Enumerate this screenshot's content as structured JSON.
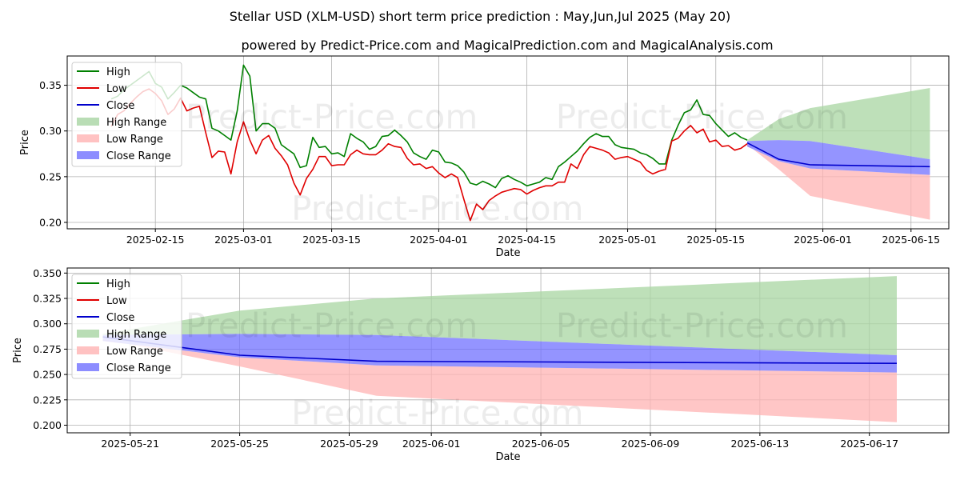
{
  "title": "Stellar USD (XLM-USD) short term price prediction : May,Jun,Jul 2025 (May 20)",
  "subtitle": "powered by Predict-Price.com and MagicalPrediction.com and MagicalAnalysis.com",
  "watermark": "Predict-Price.com",
  "colors": {
    "high": "#008000",
    "low": "#e00000",
    "close": "#0000cc",
    "high_range": "#a8d5a2",
    "low_range": "#ffb3b3",
    "close_range": "#7070ff"
  },
  "legend": [
    "High",
    "Low",
    "Close",
    "High Range",
    "Low Range",
    "Close Range"
  ],
  "chart_data": [
    {
      "type": "line",
      "name": "overview",
      "xlabel": "Date",
      "ylabel": "Price",
      "xlim": [
        "2025-02-01",
        "2025-06-21"
      ],
      "ylim": [
        0.193,
        0.382
      ],
      "x_ticks": [
        "2025-02-15",
        "2025-03-01",
        "2025-03-15",
        "2025-04-01",
        "2025-04-15",
        "2025-05-01",
        "2025-05-15",
        "2025-06-01",
        "2025-06-15"
      ],
      "y_ticks": [
        0.2,
        0.25,
        0.3,
        0.35
      ],
      "y_tick_labels": [
        "0.20",
        "0.25",
        "0.30",
        "0.35"
      ],
      "legend_position": "top-left",
      "grid": true,
      "history_start": "2025-02-08",
      "history": {
        "high": [
          0.335,
          0.338,
          0.345,
          0.35,
          0.355,
          0.36,
          0.365,
          0.352,
          0.348,
          0.335,
          0.342,
          0.35,
          0.347,
          0.342,
          0.337,
          0.335,
          0.303,
          0.3,
          0.295,
          0.29,
          0.322,
          0.372,
          0.36,
          0.3,
          0.308,
          0.308,
          0.303,
          0.285,
          0.28,
          0.275,
          0.26,
          0.262,
          0.293,
          0.282,
          0.283,
          0.275,
          0.276,
          0.272,
          0.297,
          0.292,
          0.288,
          0.28,
          0.283,
          0.294,
          0.295,
          0.301,
          0.295,
          0.288,
          0.276,
          0.272,
          0.269,
          0.279,
          0.277,
          0.266,
          0.265,
          0.262,
          0.255,
          0.243,
          0.241,
          0.245,
          0.242,
          0.238,
          0.248,
          0.251,
          0.247,
          0.244,
          0.24,
          0.242,
          0.244,
          0.249,
          0.247,
          0.261,
          0.266,
          0.272,
          0.278,
          0.286,
          0.293,
          0.297,
          0.294,
          0.294,
          0.285,
          0.282,
          0.281,
          0.28,
          0.276,
          0.274,
          0.27,
          0.264,
          0.264,
          0.29,
          0.306,
          0.32,
          0.323,
          0.334,
          0.318,
          0.317,
          0.308,
          0.301,
          0.294,
          0.298,
          0.293,
          0.29
        ],
        "low": [
          0.305,
          0.318,
          0.322,
          0.33,
          0.337,
          0.343,
          0.346,
          0.341,
          0.333,
          0.318,
          0.324,
          0.336,
          0.322,
          0.325,
          0.327,
          0.298,
          0.271,
          0.278,
          0.277,
          0.253,
          0.288,
          0.31,
          0.29,
          0.275,
          0.29,
          0.295,
          0.281,
          0.273,
          0.263,
          0.243,
          0.23,
          0.248,
          0.258,
          0.272,
          0.272,
          0.262,
          0.263,
          0.263,
          0.274,
          0.279,
          0.275,
          0.274,
          0.274,
          0.279,
          0.286,
          0.283,
          0.282,
          0.27,
          0.263,
          0.264,
          0.259,
          0.261,
          0.254,
          0.249,
          0.253,
          0.249,
          0.225,
          0.202,
          0.22,
          0.214,
          0.224,
          0.229,
          0.233,
          0.235,
          0.237,
          0.236,
          0.231,
          0.235,
          0.238,
          0.24,
          0.24,
          0.244,
          0.244,
          0.264,
          0.259,
          0.274,
          0.283,
          0.281,
          0.279,
          0.276,
          0.269,
          0.271,
          0.272,
          0.269,
          0.266,
          0.257,
          0.253,
          0.256,
          0.258,
          0.289,
          0.292,
          0.3,
          0.306,
          0.298,
          0.302,
          0.288,
          0.29,
          0.283,
          0.284,
          0.279,
          0.281,
          0.286
        ]
      },
      "forecast_dates": [
        "2025-05-20",
        "2025-05-25",
        "2025-05-30",
        "2025-06-18"
      ],
      "forecast": {
        "close": [
          0.287,
          0.269,
          0.263,
          0.261
        ],
        "high_range_upper": [
          0.29,
          0.313,
          0.325,
          0.347
        ],
        "close_range_upper": [
          0.289,
          0.29,
          0.289,
          0.269
        ],
        "close_range_lower": [
          0.283,
          0.267,
          0.259,
          0.252
        ],
        "low_range_lower": [
          0.285,
          0.258,
          0.229,
          0.203
        ]
      }
    },
    {
      "type": "area",
      "name": "forecast-detail",
      "xlabel": "Date",
      "ylabel": "Price",
      "xlim": [
        "2025-05-18.7",
        "2025-06-19.9"
      ],
      "ylim": [
        0.1925,
        0.355
      ],
      "x_ticks": [
        "2025-05-21",
        "2025-05-25",
        "2025-05-29",
        "2025-06-01",
        "2025-06-05",
        "2025-06-09",
        "2025-06-13",
        "2025-06-17"
      ],
      "y_ticks": [
        0.2,
        0.225,
        0.25,
        0.275,
        0.3,
        0.325,
        0.35
      ],
      "y_tick_labels": [
        "0.200",
        "0.225",
        "0.250",
        "0.275",
        "0.300",
        "0.325",
        "0.350"
      ],
      "legend_position": "top-left",
      "grid": true,
      "forecast_dates": [
        "2025-05-20",
        "2025-05-25",
        "2025-05-30",
        "2025-06-18"
      ],
      "forecast": {
        "close": [
          0.287,
          0.269,
          0.263,
          0.261
        ],
        "high_range_upper": [
          0.29,
          0.313,
          0.325,
          0.347
        ],
        "close_range_upper": [
          0.289,
          0.29,
          0.289,
          0.269
        ],
        "close_range_lower": [
          0.283,
          0.267,
          0.259,
          0.252
        ],
        "low_range_lower": [
          0.285,
          0.258,
          0.229,
          0.203
        ]
      }
    }
  ]
}
